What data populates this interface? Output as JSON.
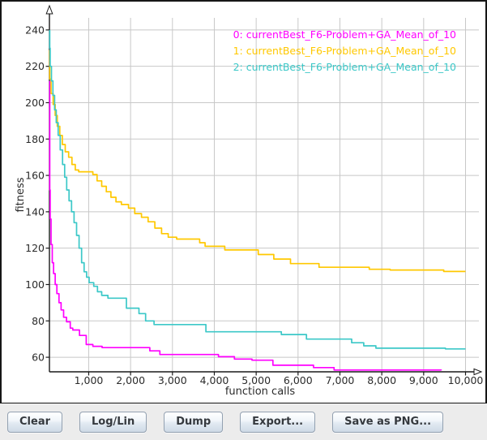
{
  "chart_data": {
    "type": "line",
    "xlabel": "function calls",
    "ylabel": "fitness",
    "xlim": [
      0,
      10000
    ],
    "ylim": [
      52,
      252
    ],
    "x_ticks": [
      1000,
      2000,
      3000,
      4000,
      5000,
      6000,
      7000,
      8000,
      9000,
      10000
    ],
    "x_tick_labels": [
      "1,000",
      "2,000",
      "3,000",
      "4,000",
      "5,000",
      "6,000",
      "7,000",
      "8,000",
      "9,000",
      "10,000"
    ],
    "y_ticks": [
      60,
      80,
      100,
      120,
      140,
      160,
      180,
      200,
      220,
      240
    ],
    "y_tick_labels": [
      "60",
      "80",
      "100",
      "120",
      "140",
      "160",
      "180",
      "200",
      "220",
      "240"
    ],
    "grid": true,
    "legend_position": "top-right",
    "interpolation": "step-after",
    "series": [
      {
        "name": "0: currentBest_F6-Problem+GA_Mean_of_10",
        "color": "#ff00ff",
        "points": [
          [
            15,
            212
          ],
          [
            25,
            196
          ],
          [
            35,
            180
          ],
          [
            45,
            168
          ],
          [
            60,
            152
          ],
          [
            80,
            136
          ],
          [
            100,
            122
          ],
          [
            130,
            112
          ],
          [
            160,
            106
          ],
          [
            200,
            100
          ],
          [
            240,
            95
          ],
          [
            290,
            90
          ],
          [
            340,
            86
          ],
          [
            400,
            82
          ],
          [
            470,
            79.5
          ],
          [
            560,
            76
          ],
          [
            620,
            75
          ],
          [
            780,
            72
          ],
          [
            940,
            67
          ],
          [
            1100,
            66
          ],
          [
            1320,
            65.3
          ],
          [
            2460,
            63.5
          ],
          [
            2700,
            61.5
          ],
          [
            4100,
            60.3
          ],
          [
            4480,
            59
          ],
          [
            4900,
            58.4
          ],
          [
            5400,
            55.6
          ],
          [
            6370,
            54.3
          ],
          [
            6860,
            53
          ],
          [
            9420,
            52.8
          ]
        ]
      },
      {
        "name": "1: currentBest_F6-Problem+GA_Mean_of_10",
        "color": "#ffc800",
        "points": [
          [
            25,
            229
          ],
          [
            45,
            221
          ],
          [
            70,
            213
          ],
          [
            100,
            205
          ],
          [
            150,
            199
          ],
          [
            200,
            193
          ],
          [
            250,
            187
          ],
          [
            310,
            182
          ],
          [
            370,
            177
          ],
          [
            440,
            173
          ],
          [
            520,
            170
          ],
          [
            600,
            166
          ],
          [
            680,
            163
          ],
          [
            760,
            162
          ],
          [
            1100,
            160.5
          ],
          [
            1200,
            157
          ],
          [
            1310,
            154
          ],
          [
            1420,
            151
          ],
          [
            1530,
            148
          ],
          [
            1650,
            145.5
          ],
          [
            1780,
            144
          ],
          [
            1950,
            142
          ],
          [
            2100,
            139
          ],
          [
            2260,
            137
          ],
          [
            2420,
            134.5
          ],
          [
            2580,
            131
          ],
          [
            2740,
            128
          ],
          [
            2900,
            126
          ],
          [
            3100,
            125
          ],
          [
            3650,
            123
          ],
          [
            3780,
            121
          ],
          [
            4250,
            119
          ],
          [
            5050,
            116.5
          ],
          [
            5420,
            114
          ],
          [
            5820,
            111.5
          ],
          [
            6500,
            109.5
          ],
          [
            7700,
            108.4
          ],
          [
            8200,
            108
          ],
          [
            9480,
            107.2
          ],
          [
            10000,
            107.2
          ]
        ]
      },
      {
        "name": "2: currentBest_F6-Problem+GA_Mean_of_10",
        "color": "#3cc8c8",
        "points": [
          [
            20,
            240
          ],
          [
            50,
            230
          ],
          [
            80,
            220
          ],
          [
            110,
            212
          ],
          [
            145,
            204
          ],
          [
            185,
            196
          ],
          [
            225,
            189
          ],
          [
            270,
            182
          ],
          [
            320,
            174
          ],
          [
            375,
            166
          ],
          [
            425,
            159
          ],
          [
            475,
            152
          ],
          [
            530,
            146
          ],
          [
            590,
            140
          ],
          [
            650,
            134
          ],
          [
            710,
            127
          ],
          [
            770,
            120
          ],
          [
            830,
            112
          ],
          [
            890,
            107
          ],
          [
            950,
            104
          ],
          [
            1010,
            101
          ],
          [
            1120,
            99
          ],
          [
            1210,
            96
          ],
          [
            1310,
            94
          ],
          [
            1460,
            92.5
          ],
          [
            1900,
            87
          ],
          [
            2200,
            84
          ],
          [
            2360,
            80
          ],
          [
            2560,
            78
          ],
          [
            3800,
            74
          ],
          [
            5600,
            72.5
          ],
          [
            6200,
            70
          ],
          [
            7280,
            68
          ],
          [
            7570,
            66.3
          ],
          [
            7860,
            65
          ],
          [
            9520,
            64.6
          ],
          [
            10000,
            64.6
          ]
        ]
      }
    ]
  },
  "toolbar": {
    "buttons": [
      {
        "name": "clear-button",
        "label": "Clear"
      },
      {
        "name": "log-lin-button",
        "label": "Log/Lin"
      },
      {
        "name": "dump-button",
        "label": "Dump"
      },
      {
        "name": "export-button",
        "label": "Export..."
      },
      {
        "name": "save-as-png-button",
        "label": "Save as PNG..."
      }
    ]
  },
  "colors": {
    "grid": "#c8c8c8",
    "axis": "#1a1a1a",
    "tick_label": "#2b2b2b",
    "plot_background": "#ffffff",
    "toolbar_background": "#ececec"
  }
}
